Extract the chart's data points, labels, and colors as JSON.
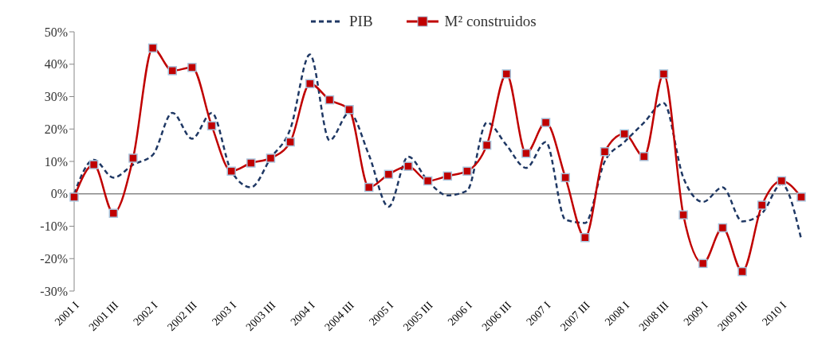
{
  "chart_data": {
    "type": "line",
    "categories": [
      "2001 I",
      null,
      "2001 III",
      null,
      "2002 I",
      null,
      "2002 III",
      null,
      "2003 I",
      null,
      "2003 III",
      null,
      "2004 I",
      null,
      "2004 III",
      null,
      "2005 I",
      null,
      "2005 III",
      null,
      "2006 I",
      null,
      "2006 III",
      null,
      "2007 I",
      null,
      "2007 III",
      null,
      "2008 I",
      null,
      "2008 III",
      null,
      "2009 I",
      null,
      "2009 III",
      null,
      "2010 I",
      null
    ],
    "series": [
      {
        "name": "PIB",
        "color": "#1f3864",
        "line_style": "dashed",
        "marker": "none",
        "values": [
          0,
          10.5,
          5,
          9,
          12,
          25,
          17,
          25,
          7,
          2,
          11,
          20,
          43,
          16.5,
          25,
          12,
          -4,
          11.5,
          4,
          -0.5,
          1,
          22,
          15,
          8,
          16,
          -8,
          -9,
          10,
          16,
          22,
          28,
          5,
          -2.5,
          2,
          -8.5,
          -6,
          3,
          -14
        ]
      },
      {
        "name": "M² construidos",
        "color": "#c00000",
        "line_style": "solid",
        "marker": "square",
        "values": [
          -1,
          9,
          -6,
          11,
          45,
          38,
          39,
          21,
          7,
          9.5,
          11,
          16,
          34,
          29,
          26,
          2,
          6,
          8.5,
          4,
          5.5,
          7,
          15,
          37,
          12.5,
          22,
          5,
          -13.5,
          13,
          18.5,
          11.5,
          37,
          -6.5,
          -21.5,
          -10.5,
          -24,
          -3.5,
          4,
          -1
        ]
      }
    ],
    "ylim": [
      -30,
      50
    ],
    "yticks": [
      {
        "value": -30,
        "label": "-30%"
      },
      {
        "value": -20,
        "label": "-20%"
      },
      {
        "value": -10,
        "label": "-10%"
      },
      {
        "value": 0,
        "label": "0%"
      },
      {
        "value": 10,
        "label": "10%"
      },
      {
        "value": 20,
        "label": "20%"
      },
      {
        "value": 30,
        "label": "30%"
      },
      {
        "value": 40,
        "label": "40%"
      },
      {
        "value": 50,
        "label": "50%"
      }
    ],
    "grid": false,
    "ref_lines": [
      {
        "axis": "y",
        "value": 0,
        "color": "#888888"
      }
    ],
    "legend": "top"
  }
}
